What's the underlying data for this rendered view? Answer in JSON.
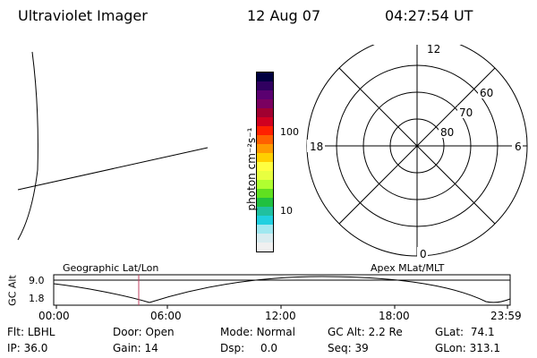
{
  "header": {
    "instrument": "Ultraviolet Imager",
    "date": "12 Aug 07",
    "time": "04:27:54 UT"
  },
  "colorbar": {
    "unit_label": "photon cm⁻²s⁻¹",
    "tick_100": "100",
    "tick_10": "10",
    "colors": [
      "#000040",
      "#300060",
      "#5a0070",
      "#7a0060",
      "#a00030",
      "#d00020",
      "#ff2000",
      "#ff6000",
      "#ff9a00",
      "#ffd000",
      "#ffff40",
      "#e8ff40",
      "#b0ff30",
      "#60e020",
      "#20c040",
      "#20c0a0",
      "#20d0e0",
      "#a0e8f0",
      "#d8ecf0",
      "#f0f0f0"
    ]
  },
  "polar": {
    "mlt_top": "12",
    "mlt_left": "18",
    "mlt_right": "6",
    "mlt_bottom": "0",
    "lat_60": "60",
    "lat_70": "70",
    "lat_80": "80"
  },
  "timeline": {
    "left_label": "Geographic Lat/Lon",
    "right_label": "Apex MLat/MLT",
    "y_axis_label": "GC Alt",
    "y_top": "9.0",
    "y_bottom": "1.8",
    "x_ticks": [
      "00:00",
      "06:00",
      "12:00",
      "18:00",
      "23:59"
    ],
    "cursor_color": "#c04060"
  },
  "status": {
    "flt_label": "Flt:",
    "flt_value": "LBHL",
    "ip_label": "IP:",
    "ip_value": "36.0",
    "door_label": "Door:",
    "door_value": "Open",
    "gain_label": "Gain:",
    "gain_value": "14",
    "mode_label": "Mode:",
    "mode_value": "Normal",
    "dsp_label": "Dsp:",
    "dsp_value": "0.0",
    "gcalt_label": "GC Alt:",
    "gcalt_value": "2.2 Re",
    "seq_label": "Seq:",
    "seq_value": "39",
    "glat_label": "GLat:",
    "glat_value": "74.1",
    "glon_label": "GLon:",
    "glon_value": "313.1"
  }
}
